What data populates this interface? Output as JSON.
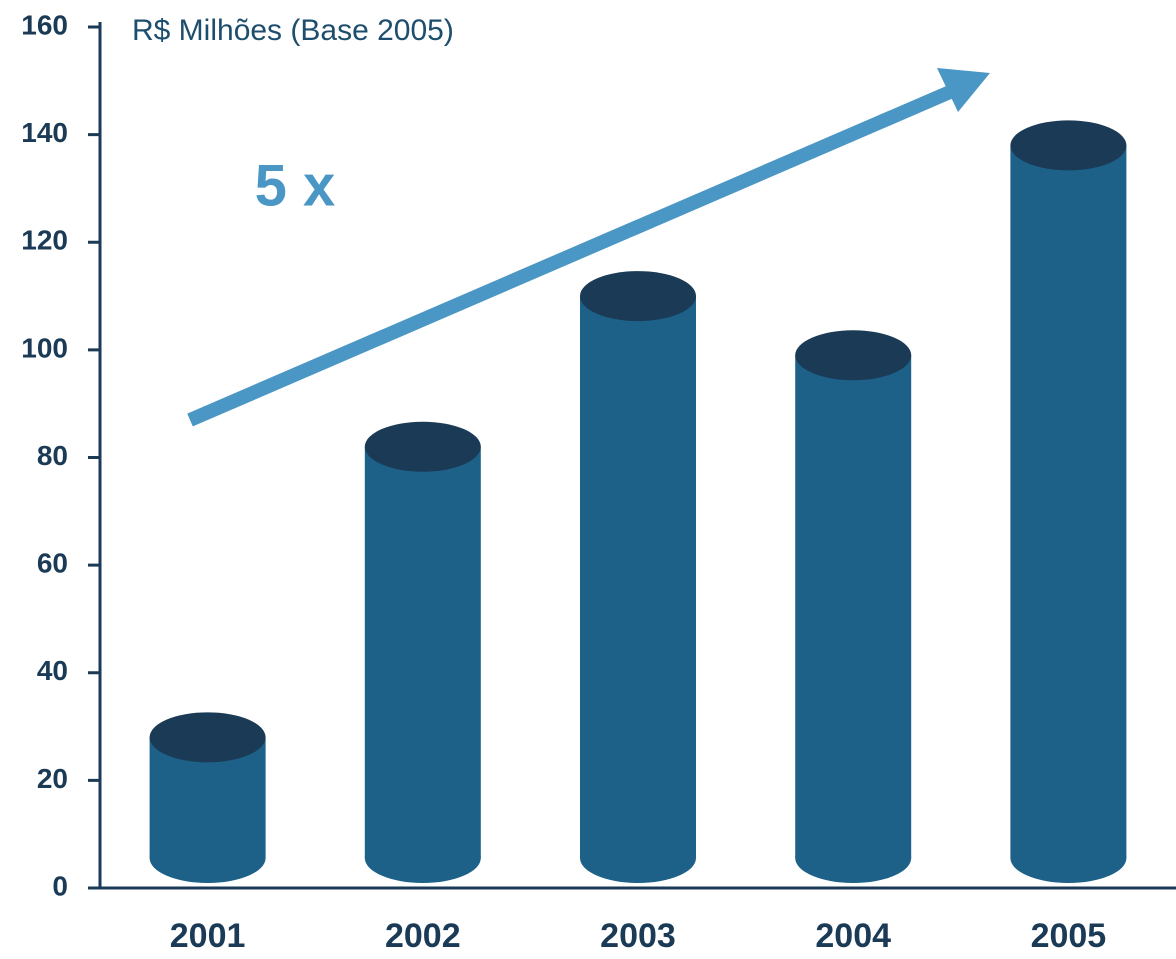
{
  "chart_data": {
    "type": "bar",
    "subtitle": "R$ Milhões (Base 2005)",
    "annotation": "5 x",
    "categories": [
      "2001",
      "2002",
      "2003",
      "2004",
      "2005"
    ],
    "values": [
      28,
      82,
      110,
      99,
      138
    ],
    "color": "#1d6189",
    "top_color": "#1a3a55",
    "ylim": [
      0,
      160
    ],
    "yticks": [
      0,
      20,
      40,
      60,
      80,
      100,
      120,
      140,
      160
    ],
    "grid": false
  }
}
